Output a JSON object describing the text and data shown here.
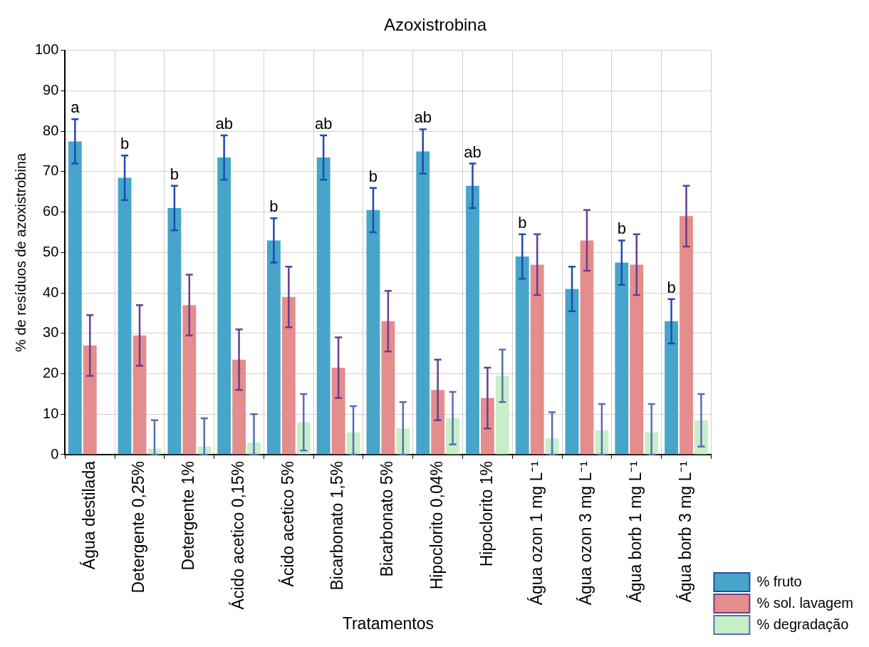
{
  "chart_data": {
    "type": "bar",
    "title": "Azoxistrobina",
    "xlabel": "Tratamentos",
    "ylabel": "% de resíduos de azoxistrobina",
    "categories": [
      "Água destilada",
      "Detergente 0,25%",
      "Detergente 1%",
      "Ácido acetico 0,15%",
      "Ácido acetico 5%",
      "Bicarbonato 1,5%",
      "Bicarbonato 5%",
      "Hipoclorito 0,04%",
      "Hipoclorito 1%",
      "Água ozon 1 mg L⁻¹",
      "Água ozon 3 mg L⁻¹",
      "Água borb 1 mg L⁻¹",
      "Água borb 3 mg L⁻¹"
    ],
    "series": [
      {
        "name": "% fruto",
        "color": "#46a5c8",
        "values": [
          77.5,
          68.5,
          61,
          73.5,
          53,
          73.5,
          60.5,
          75,
          66.5,
          49,
          41,
          47.5,
          33
        ],
        "errors": [
          5.5,
          5.5,
          5.5,
          5.5,
          5.5,
          5.5,
          5.5,
          5.5,
          5.5,
          5.5,
          5.5,
          5.5,
          5.5
        ],
        "value_labels": [
          "a",
          "b",
          "b",
          "ab",
          "b",
          "ab",
          "b",
          "ab",
          "ab",
          "b",
          null,
          "b",
          "b"
        ]
      },
      {
        "name": "% sol. lavagem",
        "color": "#e58c8c",
        "values": [
          27,
          29.5,
          37,
          23.5,
          39,
          21.5,
          33,
          16,
          14,
          47,
          53,
          47,
          59
        ],
        "errors": [
          7.5,
          7.5,
          7.5,
          7.5,
          7.5,
          7.5,
          7.5,
          7.5,
          7.5,
          7.5,
          7.5,
          7.5,
          7.5
        ]
      },
      {
        "name": "% degradação",
        "color": "#c6efc8",
        "values": [
          null,
          1.5,
          2,
          3,
          8,
          5.5,
          6.5,
          9,
          19.5,
          4,
          6,
          5.5,
          8.5
        ],
        "errors": [
          null,
          [
            0,
            8.5
          ],
          [
            0,
            9
          ],
          [
            0,
            10
          ],
          [
            1,
            15
          ],
          [
            0,
            12
          ],
          [
            0,
            13
          ],
          [
            2.5,
            15.5
          ],
          [
            13,
            26
          ],
          [
            0,
            10.5
          ],
          [
            0,
            12.5
          ],
          [
            0,
            12.5
          ],
          [
            2,
            15
          ]
        ]
      }
    ],
    "ylim": [
      0,
      100
    ],
    "yticks": [
      0,
      10,
      20,
      30,
      40,
      50,
      60,
      70,
      80,
      90,
      100
    ],
    "grid": true,
    "legend": "bottom right"
  }
}
